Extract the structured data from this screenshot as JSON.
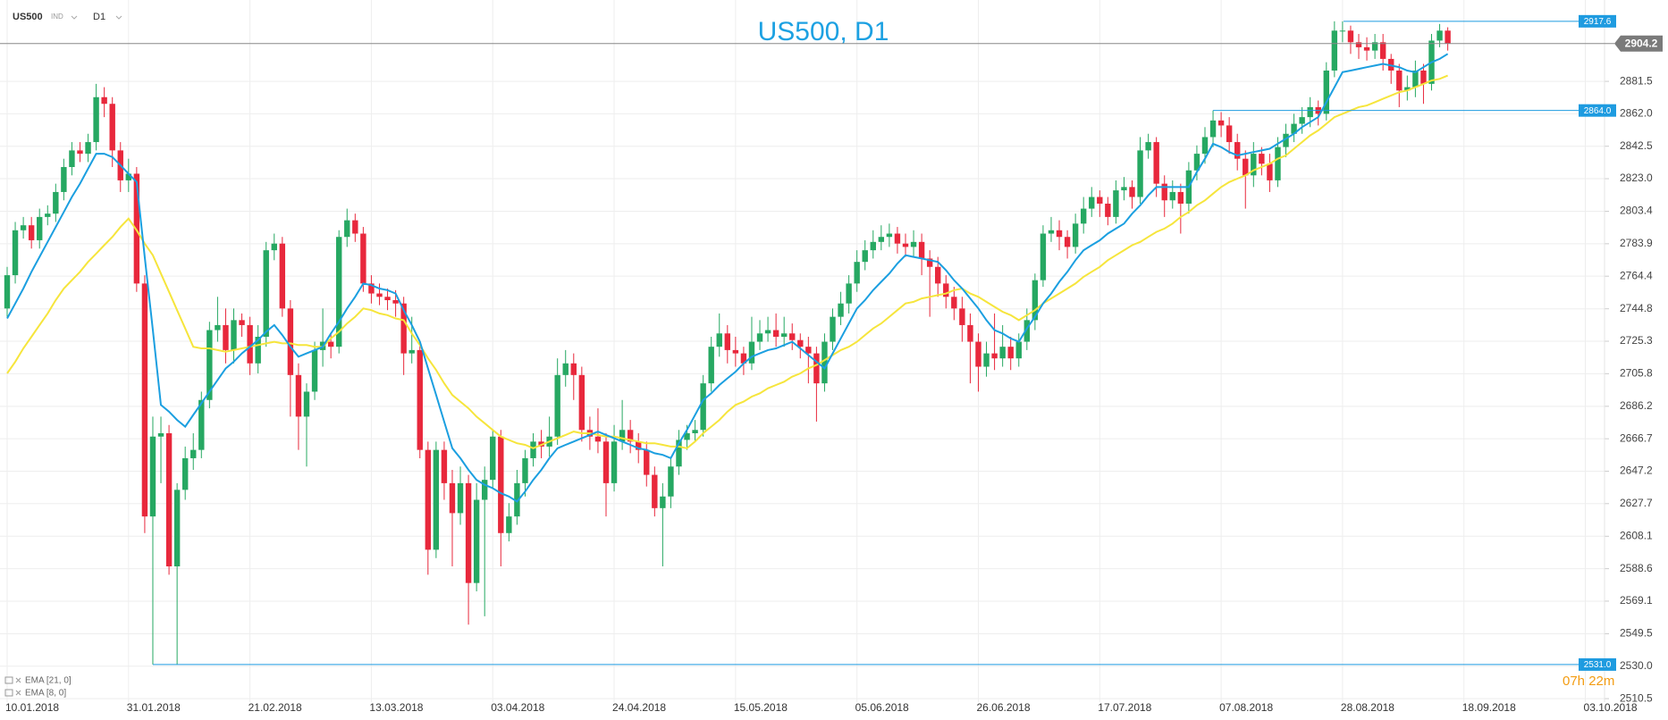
{
  "header": {
    "symbol": "US500",
    "market": "IND",
    "timeframe": "D1"
  },
  "chart_data": {
    "type": "candlestick",
    "title": "US500, D1",
    "categories": [
      "10.01.2018",
      null,
      null,
      null,
      null,
      null,
      null,
      null,
      null,
      null,
      null,
      null,
      null,
      null,
      null,
      "31.01.2018",
      null,
      null,
      null,
      null,
      null,
      null,
      null,
      null,
      null,
      null,
      null,
      null,
      null,
      null,
      "21.02.2018",
      null,
      null,
      null,
      null,
      null,
      null,
      null,
      null,
      null,
      null,
      null,
      null,
      null,
      null,
      "13.03.2018",
      null,
      null,
      null,
      null,
      null,
      null,
      null,
      null,
      null,
      null,
      null,
      null,
      null,
      null,
      "03.04.2018",
      null,
      null,
      null,
      null,
      null,
      null,
      null,
      null,
      null,
      null,
      null,
      null,
      null,
      null,
      "24.04.2018",
      null,
      null,
      null,
      null,
      null,
      null,
      null,
      null,
      null,
      null,
      null,
      null,
      null,
      null,
      "15.05.2018",
      null,
      null,
      null,
      null,
      null,
      null,
      null,
      null,
      null,
      null,
      null,
      null,
      null,
      null,
      "05.06.2018",
      null,
      null,
      null,
      null,
      null,
      null,
      null,
      null,
      null,
      null,
      null,
      null,
      null,
      null,
      "26.06.2018",
      null,
      null,
      null,
      null,
      null,
      null,
      null,
      null,
      null,
      null,
      null,
      null,
      null,
      null,
      "17.07.2018",
      null,
      null,
      null,
      null,
      null,
      null,
      null,
      null,
      null,
      null,
      null,
      null,
      null,
      null,
      "07.08.2018",
      null,
      null,
      null,
      null,
      null,
      null,
      null,
      null,
      null,
      null,
      null,
      null,
      null,
      null,
      "28.08.2018",
      null,
      null,
      null,
      null,
      null,
      null,
      null,
      null,
      null,
      null,
      null,
      null,
      null,
      null,
      "18.09.2018",
      null,
      null,
      null,
      null,
      null,
      null,
      null,
      null,
      null,
      null,
      null,
      null,
      null,
      null,
      "03.10.2018"
    ],
    "open": [
      2745,
      2765,
      2792,
      2795,
      2786,
      2800,
      2802,
      2815,
      2830,
      2840,
      2838,
      2845,
      2872,
      2868,
      2840,
      2822,
      2826,
      2760,
      2620,
      2668,
      2670,
      2590,
      2636,
      2655,
      2660,
      2690,
      2732,
      2735,
      2720,
      2738,
      2735,
      2712,
      2728,
      2780,
      2784,
      2745,
      2705,
      2680,
      2695,
      2720,
      2725,
      2722,
      2788,
      2798,
      2790,
      2760,
      2754,
      2752,
      2750,
      2748,
      2718,
      2720,
      2660,
      2600,
      2660,
      2640,
      2622,
      2640,
      2580,
      2630,
      2642,
      2668,
      2610,
      2620,
      2640,
      2655,
      2665,
      2662,
      2668,
      2705,
      2712,
      2705,
      2672,
      2668,
      2665,
      2640,
      2665,
      2672,
      2665,
      2660,
      2645,
      2625,
      2632,
      2650,
      2666,
      2670,
      2672,
      2700,
      2722,
      2730,
      2720,
      2718,
      2712,
      2725,
      2730,
      2732,
      2728,
      2730,
      2726,
      2722,
      2718,
      2700,
      2725,
      2740,
      2748,
      2760,
      2773,
      2780,
      2785,
      2788,
      2790,
      2784,
      2782,
      2785,
      2775,
      2770,
      2760,
      2752,
      2745,
      2735,
      2725,
      2710,
      2718,
      2715,
      2722,
      2715,
      2725,
      2738,
      2762,
      2790,
      2792,
      2788,
      2782,
      2796,
      2805,
      2812,
      2808,
      2800,
      2816,
      2818,
      2812,
      2840,
      2845,
      2820,
      2810,
      2815,
      2808,
      2828,
      2838,
      2848,
      2858,
      2855,
      2845,
      2835,
      2825,
      2838,
      2832,
      2822,
      2842,
      2850,
      2856,
      2860,
      2866,
      2862,
      2888,
      2912,
      2912,
      2905,
      2902,
      2900,
      2905,
      2895,
      2888,
      2876,
      2878,
      2888,
      2880,
      2906,
      2912,
      null,
      null,
      null,
      null,
      null,
      null,
      null,
      null,
      null,
      null,
      null,
      null,
      null,
      null,
      null,
      null,
      null
    ],
    "high": [
      2770,
      2797,
      2800,
      2800,
      2805,
      2807,
      2820,
      2835,
      2845,
      2845,
      2850,
      2880,
      2878,
      2872,
      2845,
      2835,
      2830,
      2765,
      2680,
      2680,
      2675,
      2640,
      2662,
      2670,
      2695,
      2737,
      2752,
      2745,
      2745,
      2742,
      2740,
      2735,
      2785,
      2790,
      2788,
      2750,
      2712,
      2700,
      2725,
      2745,
      2730,
      2792,
      2805,
      2802,
      2794,
      2765,
      2760,
      2757,
      2756,
      2752,
      2740,
      2725,
      2665,
      2665,
      2665,
      2648,
      2650,
      2645,
      2640,
      2650,
      2672,
      2672,
      2628,
      2648,
      2660,
      2670,
      2672,
      2680,
      2715,
      2720,
      2718,
      2710,
      2680,
      2685,
      2670,
      2675,
      2690,
      2678,
      2670,
      2665,
      2650,
      2640,
      2655,
      2672,
      2675,
      2678,
      2705,
      2728,
      2742,
      2735,
      2728,
      2722,
      2740,
      2738,
      2740,
      2742,
      2740,
      2736,
      2730,
      2728,
      2722,
      2730,
      2745,
      2755,
      2765,
      2780,
      2786,
      2792,
      2795,
      2796,
      2794,
      2790,
      2792,
      2790,
      2780,
      2776,
      2765,
      2758,
      2752,
      2742,
      2730,
      2725,
      2742,
      2735,
      2728,
      2730,
      2745,
      2766,
      2795,
      2800,
      2798,
      2792,
      2802,
      2812,
      2818,
      2816,
      2812,
      2822,
      2824,
      2822,
      2848,
      2850,
      2848,
      2825,
      2822,
      2820,
      2833,
      2843,
      2854,
      2864,
      2863,
      2860,
      2850,
      2840,
      2845,
      2842,
      2838,
      2848,
      2856,
      2862,
      2866,
      2872,
      2870,
      2893,
      2917.6,
      2917.6,
      2915,
      2910,
      2908,
      2910,
      2910,
      2898,
      2892,
      2885,
      2894,
      2892,
      2910,
      2916,
      2914,
      null,
      null,
      null,
      null,
      null,
      null,
      null,
      null,
      null,
      null,
      null,
      null,
      null,
      null,
      null,
      null,
      null
    ],
    "low": [
      2740,
      2760,
      2787,
      2781,
      2781,
      2795,
      2797,
      2810,
      2825,
      2833,
      2833,
      2840,
      2860,
      2830,
      2815,
      2815,
      2755,
      2610,
      2531,
      2640,
      2585,
      2531,
      2630,
      2648,
      2655,
      2685,
      2725,
      2712,
      2712,
      2728,
      2705,
      2706,
      2722,
      2774,
      2740,
      2680,
      2660,
      2650,
      2690,
      2710,
      2715,
      2718,
      2782,
      2785,
      2755,
      2748,
      2747,
      2744,
      2740,
      2705,
      2712,
      2655,
      2585,
      2595,
      2630,
      2590,
      2615,
      2555,
      2575,
      2560,
      2637,
      2590,
      2605,
      2615,
      2632,
      2650,
      2655,
      2656,
      2663,
      2698,
      2690,
      2665,
      2660,
      2658,
      2620,
      2635,
      2660,
      2658,
      2652,
      2638,
      2620,
      2590,
      2625,
      2645,
      2660,
      2665,
      2668,
      2695,
      2716,
      2712,
      2710,
      2705,
      2708,
      2720,
      2725,
      2722,
      2722,
      2720,
      2715,
      2700,
      2677,
      2695,
      2720,
      2735,
      2742,
      2755,
      2768,
      2775,
      2780,
      2782,
      2778,
      2776,
      2776,
      2765,
      2740,
      2752,
      2745,
      2738,
      2725,
      2700,
      2695,
      2704,
      2708,
      2710,
      2708,
      2710,
      2720,
      2732,
      2758,
      2785,
      2780,
      2775,
      2778,
      2790,
      2800,
      2800,
      2795,
      2796,
      2810,
      2805,
      2808,
      2835,
      2812,
      2800,
      2805,
      2790,
      2802,
      2822,
      2832,
      2842,
      2848,
      2838,
      2828,
      2805,
      2818,
      2825,
      2815,
      2818,
      2836,
      2845,
      2850,
      2854,
      2855,
      2858,
      2884,
      2905,
      2898,
      2895,
      2894,
      2895,
      2888,
      2880,
      2866,
      2870,
      2872,
      2868,
      2876,
      2902,
      2900,
      null,
      null,
      null,
      null,
      null,
      null,
      null,
      null,
      null,
      null,
      null,
      null,
      null,
      null,
      null,
      null,
      null
    ],
    "close": [
      2765,
      2792,
      2795,
      2786,
      2800,
      2802,
      2815,
      2830,
      2840,
      2838,
      2845,
      2872,
      2868,
      2840,
      2822,
      2826,
      2760,
      2620,
      2668,
      2670,
      2590,
      2636,
      2655,
      2660,
      2690,
      2732,
      2735,
      2720,
      2738,
      2735,
      2712,
      2728,
      2780,
      2784,
      2745,
      2705,
      2680,
      2695,
      2720,
      2725,
      2722,
      2788,
      2798,
      2790,
      2760,
      2754,
      2752,
      2750,
      2748,
      2718,
      2720,
      2660,
      2600,
      2660,
      2640,
      2622,
      2640,
      2580,
      2630,
      2642,
      2668,
      2610,
      2620,
      2640,
      2655,
      2665,
      2662,
      2668,
      2705,
      2712,
      2705,
      2672,
      2668,
      2665,
      2640,
      2665,
      2672,
      2665,
      2660,
      2645,
      2625,
      2632,
      2650,
      2666,
      2670,
      2672,
      2700,
      2722,
      2730,
      2720,
      2718,
      2712,
      2725,
      2730,
      2732,
      2728,
      2730,
      2726,
      2722,
      2718,
      2700,
      2725,
      2740,
      2748,
      2760,
      2773,
      2780,
      2785,
      2788,
      2790,
      2784,
      2782,
      2785,
      2775,
      2770,
      2760,
      2752,
      2745,
      2735,
      2725,
      2710,
      2718,
      2715,
      2722,
      2715,
      2725,
      2738,
      2762,
      2790,
      2792,
      2788,
      2782,
      2796,
      2805,
      2812,
      2808,
      2800,
      2816,
      2818,
      2812,
      2840,
      2845,
      2820,
      2810,
      2815,
      2808,
      2828,
      2838,
      2848,
      2858,
      2855,
      2845,
      2835,
      2825,
      2838,
      2832,
      2822,
      2842,
      2850,
      2856,
      2860,
      2866,
      2862,
      2888,
      2912,
      2912,
      2905,
      2902,
      2900,
      2905,
      2895,
      2888,
      2876,
      2878,
      2888,
      2880,
      2906,
      2912,
      2904.2,
      null,
      null,
      null,
      null,
      null,
      null,
      null,
      null,
      null,
      null,
      null,
      null,
      null,
      null,
      null,
      null,
      null
    ],
    "up_color": "#26a862",
    "down_color": "#e8283c",
    "series": [
      {
        "name": "EMA [21, 0]",
        "color": "#f6e53c",
        "values": [
          2706,
          2713,
          2721,
          2728,
          2735,
          2742,
          2750,
          2757,
          2762,
          2767,
          2773,
          2778,
          2783,
          2788,
          2794,
          2799,
          2792,
          2784,
          2777,
          2766,
          2755,
          2744,
          2733,
          2722,
          2721,
          2721,
          2720,
          2719,
          2720,
          2721,
          2722,
          2723,
          2724,
          2725,
          2724,
          2724,
          2723,
          2723,
          2722,
          2722,
          2727,
          2731,
          2736,
          2740,
          2745,
          2744,
          2742,
          2741,
          2739,
          2738,
          2730,
          2723,
          2715,
          2708,
          2700,
          2693,
          2689,
          2685,
          2680,
          2676,
          2672,
          2668,
          2666,
          2664,
          2663,
          2661,
          2663,
          2665,
          2667,
          2669,
          2671,
          2670,
          2670,
          2669,
          2668,
          2668,
          2667,
          2666,
          2665,
          2664,
          2664,
          2663,
          2662,
          2662,
          2661,
          2665,
          2670,
          2674,
          2678,
          2683,
          2687,
          2689,
          2692,
          2694,
          2697,
          2699,
          2701,
          2704,
          2706,
          2709,
          2711,
          2714,
          2717,
          2720,
          2722,
          2725,
          2729,
          2733,
          2736,
          2740,
          2744,
          2748,
          2749,
          2751,
          2752,
          2753,
          2754,
          2756,
          2757,
          2754,
          2752,
          2749,
          2746,
          2743,
          2741,
          2738,
          2741,
          2744,
          2748,
          2751,
          2754,
          2757,
          2760,
          2764,
          2767,
          2770,
          2774,
          2777,
          2780,
          2783,
          2785,
          2788,
          2791,
          2793,
          2796,
          2800,
          2803,
          2807,
          2810,
          2814,
          2818,
          2821,
          2823,
          2825,
          2828,
          2830,
          2832,
          2835,
          2837,
          2841,
          2845,
          2849,
          2852,
          2856,
          2860,
          2862,
          2864,
          2866,
          2867,
          2869,
          2871,
          2873,
          2875,
          2876,
          2878,
          2880,
          2882,
          2883,
          2885,
          null,
          null,
          null,
          null,
          null,
          null,
          null,
          null,
          null,
          null,
          null,
          null,
          null,
          null,
          null,
          null,
          null
        ]
      },
      {
        "name": "EMA [8, 0]",
        "color": "#1b9fe0",
        "values": [
          2739,
          2748,
          2757,
          2767,
          2776,
          2785,
          2794,
          2803,
          2812,
          2820,
          2829,
          2838,
          2838,
          2836,
          2831,
          2826,
          2821,
          2776,
          2732,
          2687,
          2683,
          2678,
          2674,
          2681,
          2688,
          2695,
          2702,
          2709,
          2713,
          2718,
          2722,
          2726,
          2731,
          2735,
          2729,
          2722,
          2716,
          2718,
          2720,
          2722,
          2730,
          2737,
          2745,
          2752,
          2760,
          2759,
          2757,
          2756,
          2754,
          2744,
          2735,
          2725,
          2709,
          2693,
          2677,
          2661,
          2655,
          2648,
          2642,
          2639,
          2637,
          2634,
          2632,
          2629,
          2635,
          2642,
          2648,
          2655,
          2661,
          2663,
          2665,
          2667,
          2669,
          2671,
          2669,
          2667,
          2665,
          2663,
          2661,
          2660,
          2658,
          2657,
          2655,
          2664,
          2672,
          2681,
          2690,
          2694,
          2699,
          2703,
          2707,
          2712,
          2716,
          2718,
          2720,
          2721,
          2723,
          2725,
          2721,
          2717,
          2713,
          2709,
          2718,
          2727,
          2736,
          2745,
          2750,
          2756,
          2761,
          2766,
          2772,
          2777,
          2776,
          2775,
          2774,
          2773,
          2768,
          2762,
          2757,
          2751,
          2745,
          2738,
          2732,
          2730,
          2727,
          2725,
          2733,
          2740,
          2748,
          2754,
          2761,
          2767,
          2774,
          2780,
          2783,
          2786,
          2790,
          2793,
          2796,
          2802,
          2807,
          2813,
          2818,
          2818,
          2818,
          2818,
          2818,
          2827,
          2835,
          2844,
          2842,
          2839,
          2837,
          2838,
          2839,
          2840,
          2841,
          2844,
          2847,
          2850,
          2854,
          2857,
          2860,
          2869,
          2878,
          2887,
          2888,
          2889,
          2890,
          2891,
          2892,
          2891,
          2890,
          2888,
          2887,
          2890,
          2893,
          2895,
          2898,
          null,
          null,
          null,
          null,
          null,
          null,
          null,
          null,
          null,
          null,
          null,
          null,
          null,
          null,
          null,
          null,
          null
        ]
      }
    ],
    "ylim": [
      2508.4,
      2930.4
    ],
    "yticks": [
      2510.5,
      {
        "value": 2530,
        "label": "2530.0"
      },
      2549.5,
      2569.1,
      2588.6,
      2608.1,
      2627.7,
      2647.2,
      2666.7,
      2686.2,
      2705.8,
      2725.3,
      2744.8,
      2764.4,
      2783.9,
      2803.4,
      {
        "value": 2823,
        "label": "2823.0"
      },
      2842.5,
      {
        "value": 2862,
        "label": "2862.0"
      },
      2881.5
    ],
    "grid": true,
    "legend": "lower left",
    "levels": [
      {
        "value": 2917.6,
        "label": "2917.6"
      },
      {
        "value": 2864,
        "label": "2864.0"
      },
      {
        "value": 2531,
        "label": "2531.0"
      }
    ],
    "last_price": 2904.2,
    "timer": "07h 22m"
  }
}
